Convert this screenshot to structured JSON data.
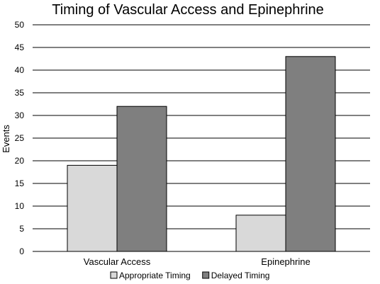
{
  "chart_data": {
    "type": "bar",
    "title": "Timing of Vascular Access and Epinephrine",
    "xlabel": "",
    "ylabel": "Events",
    "ylim": [
      0,
      50
    ],
    "yticks": [
      0,
      5,
      10,
      15,
      20,
      25,
      30,
      35,
      40,
      45,
      50
    ],
    "grid": true,
    "legend_position": "bottom",
    "categories": [
      "Vascular Access",
      "Epinephrine"
    ],
    "series": [
      {
        "name": "Appropriate Timing",
        "color": "#d9d9d9",
        "values": [
          19,
          8
        ]
      },
      {
        "name": "Delayed Timing",
        "color": "#7f7f7f",
        "values": [
          32,
          43
        ]
      }
    ]
  }
}
